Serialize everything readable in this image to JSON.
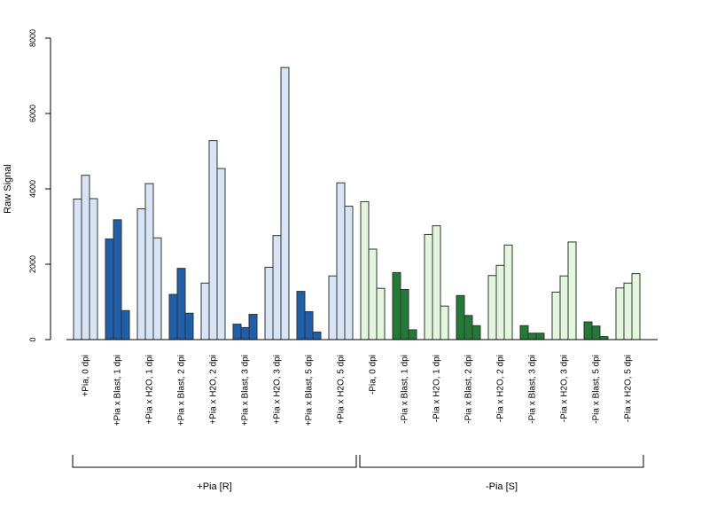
{
  "chart_data": {
    "type": "bar",
    "title": "",
    "xlabel": "",
    "ylabel": "Raw Signal",
    "ylim": [
      0,
      8000
    ],
    "yticks": [
      "0",
      "2000",
      "4000",
      "6000",
      "8000"
    ],
    "grid": false,
    "colors": {
      "light_blue": "#d6e4f5",
      "dark_blue": "#1f5ea8",
      "light_green": "#e3f7de",
      "dark_green": "#237a37"
    },
    "categories": [
      "+Pia, 0 dpi",
      "+Pia x Blast, 1 dpi",
      "+Pia x H2O, 1 dpi",
      "+Pia x Blast, 2 dpi",
      "+Pia x H2O, 2 dpi",
      "+Pia x Blast, 3 dpi",
      "+Pia x H2O, 3 dpi",
      "+Pia x Blast, 5 dpi",
      "+Pia x H2O, 5 dpi",
      "-Pia, 0 dpi",
      "-Pia x Blast, 1 dpi",
      "-Pia x H2O, 1 dpi",
      "-Pia x Blast, 2 dpi",
      "-Pia x H2O, 2 dpi",
      "-Pia x Blast, 3 dpi",
      "-Pia x H2O, 3 dpi",
      "-Pia x Blast, 5 dpi",
      "-Pia x H2O, 5 dpi"
    ],
    "bar_colors": [
      "light_blue",
      "dark_blue",
      "light_blue",
      "dark_blue",
      "light_blue",
      "dark_blue",
      "light_blue",
      "dark_blue",
      "light_blue",
      "light_green",
      "dark_green",
      "light_green",
      "dark_green",
      "light_green",
      "dark_green",
      "light_green",
      "dark_green",
      "light_green"
    ],
    "values": [
      [
        3730,
        4360,
        3740
      ],
      [
        2670,
        3180,
        770
      ],
      [
        3470,
        4140,
        2700
      ],
      [
        1200,
        1890,
        700
      ],
      [
        1500,
        5280,
        4540
      ],
      [
        410,
        320,
        670
      ],
      [
        1920,
        2760,
        7220
      ],
      [
        1280,
        740,
        200
      ],
      [
        1690,
        4160,
        3540
      ],
      [
        3660,
        2400,
        1360
      ],
      [
        1780,
        1330,
        260
      ],
      [
        2790,
        3020,
        890
      ],
      [
        1170,
        640,
        370
      ],
      [
        1700,
        1970,
        2510
      ],
      [
        370,
        170,
        170
      ],
      [
        1260,
        1690,
        2590
      ],
      [
        470,
        360,
        80
      ],
      [
        1370,
        1500,
        1750
      ]
    ],
    "groups": [
      {
        "label": "+Pia [R]",
        "categories": [
          0,
          8
        ]
      },
      {
        "label": "-Pia [S]",
        "categories": [
          9,
          17
        ]
      }
    ]
  }
}
